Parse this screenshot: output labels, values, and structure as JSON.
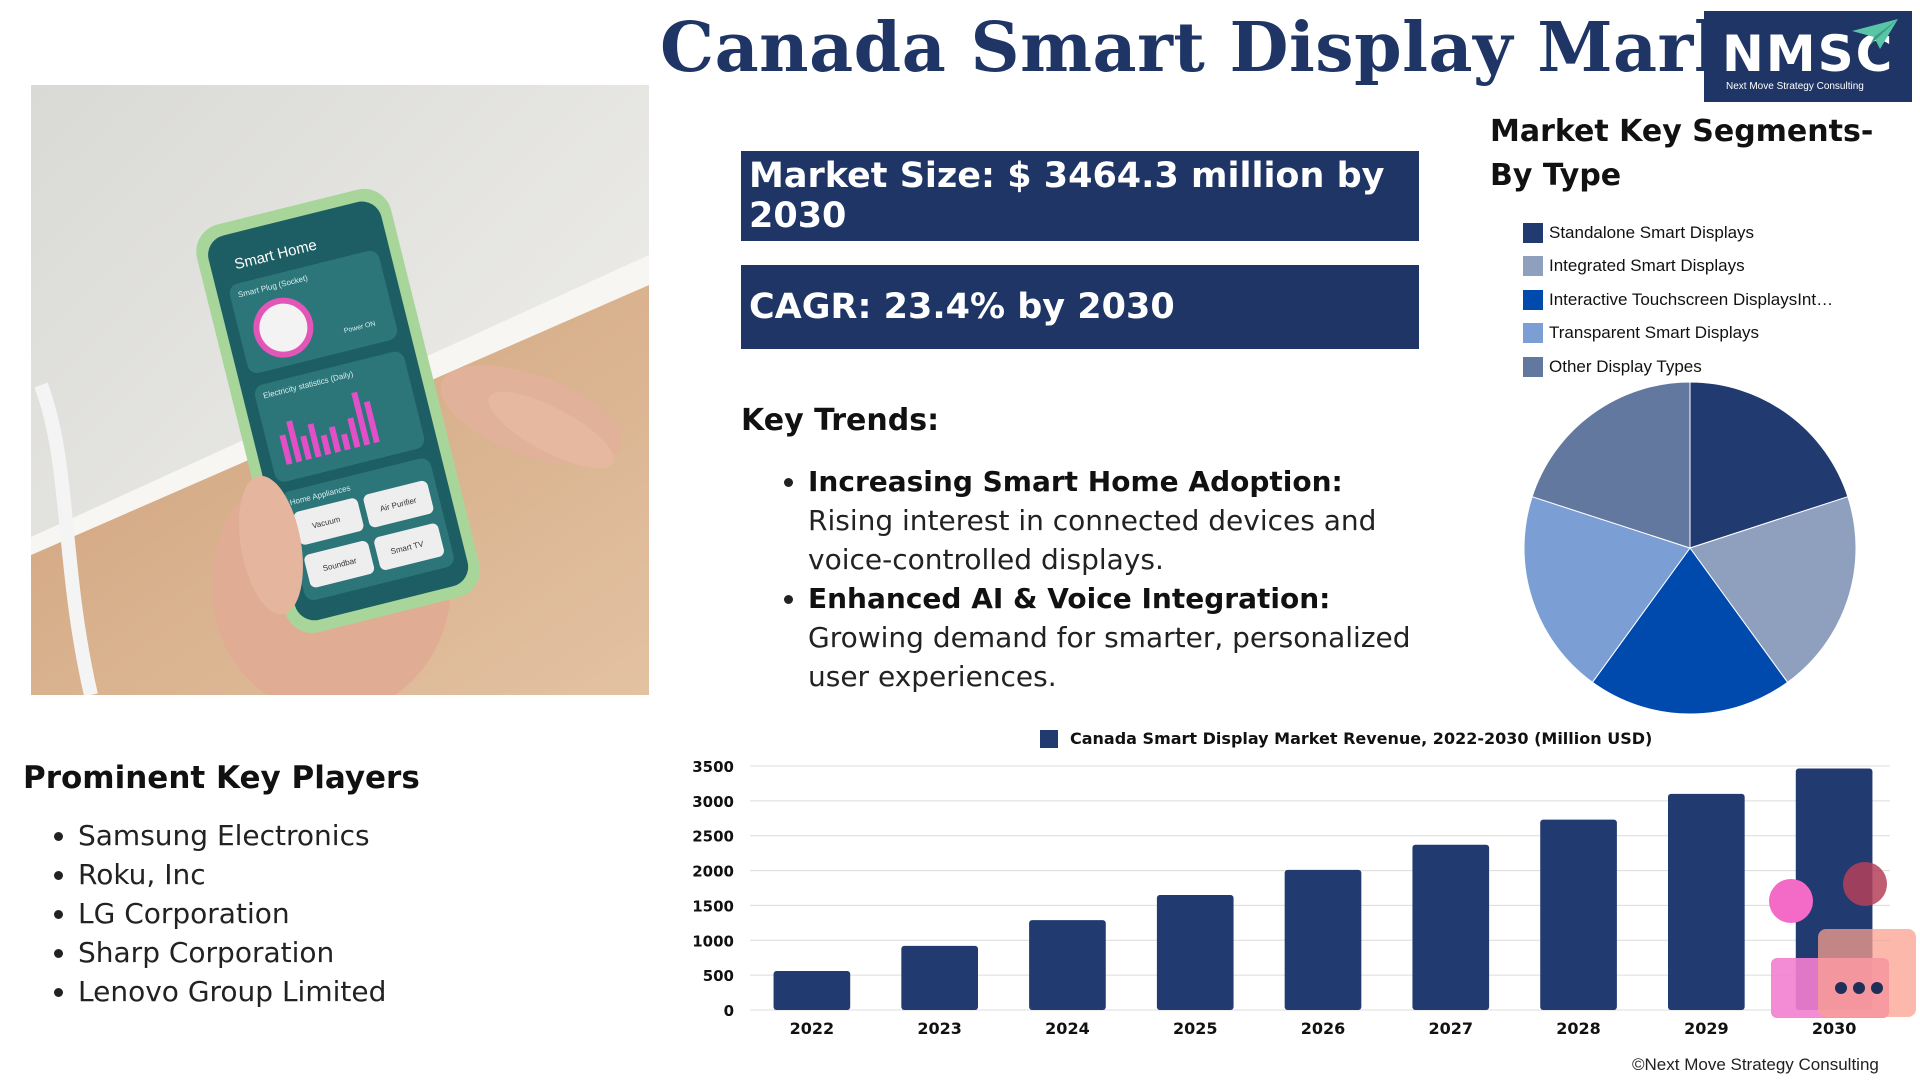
{
  "title": "Canada Smart Display Market",
  "logo": {
    "text": "NMSC",
    "subtitle": "Next Move Strategy Consulting"
  },
  "photo": {
    "header": "Smart Home",
    "plug_label": "Smart Plug (Socket)",
    "power_label": "Power ON",
    "stats_label": "Electricity statistics (Daily)",
    "appliances_label": "Home Appliances",
    "appliances": [
      "Vacuum",
      "Air Purifier",
      "Soundbar",
      "Smart TV"
    ]
  },
  "market_size": "Market Size: $ 3464.3 million by 2030",
  "cagr": "CAGR: 23.4% by 2030",
  "key_trends": {
    "heading": "Key Trends:",
    "items": [
      {
        "bold": "Increasing Smart Home Adoption:",
        "text": " Rising interest in connected devices and voice-controlled displays."
      },
      {
        "bold": "Enhanced AI & Voice Integration:",
        "text": " Growing demand for smarter, personalized user experiences."
      }
    ]
  },
  "key_players": {
    "heading": "Prominent Key Players",
    "items": [
      "Samsung Electronics",
      "Roku, Inc",
      "LG Corporation",
      "Sharp Corporation",
      "Lenovo Group Limited"
    ]
  },
  "segments": {
    "heading_line1": "Market Key Segments-",
    "heading_line2": "By Type",
    "legend": [
      {
        "label": "Standalone Smart Displays",
        "color": "#213a70"
      },
      {
        "label": "Integrated Smart Displays",
        "color": "#8f9fbe"
      },
      {
        "label": "Interactive Touchscreen DisplaysInt…",
        "color": "#004aad"
      },
      {
        "label": "Transparent Smart Displays",
        "color": "#7b9ed4"
      },
      {
        "label": "Other Display Types",
        "color": "#63789f"
      }
    ]
  },
  "chart_data": [
    {
      "type": "pie",
      "labels": [
        "Standalone Smart Displays",
        "Integrated Smart Displays",
        "Interactive Touchscreen DisplaysInt…",
        "Transparent Smart Displays",
        "Other Display Types"
      ],
      "values": [
        20,
        20,
        20,
        20,
        20
      ],
      "colors": [
        "#213a70",
        "#8f9fbe",
        "#004aad",
        "#7b9ed4",
        "#63789f"
      ]
    },
    {
      "type": "bar",
      "title": "Canada Smart Display Market Revenue, 2022-2030 (Million USD)",
      "categories": [
        "2022",
        "2023",
        "2024",
        "2025",
        "2026",
        "2027",
        "2028",
        "2029",
        "2030"
      ],
      "values": [
        560,
        920,
        1290,
        1650,
        2010,
        2370,
        2730,
        3100,
        3464.3
      ],
      "yticks": [
        0,
        500,
        1000,
        1500,
        2000,
        2500,
        3000,
        3500
      ],
      "ylim": [
        0,
        3500
      ],
      "grid": true,
      "legend": "top-center",
      "color": "#213a70"
    }
  ],
  "footer": "©Next Move Strategy Consulting"
}
